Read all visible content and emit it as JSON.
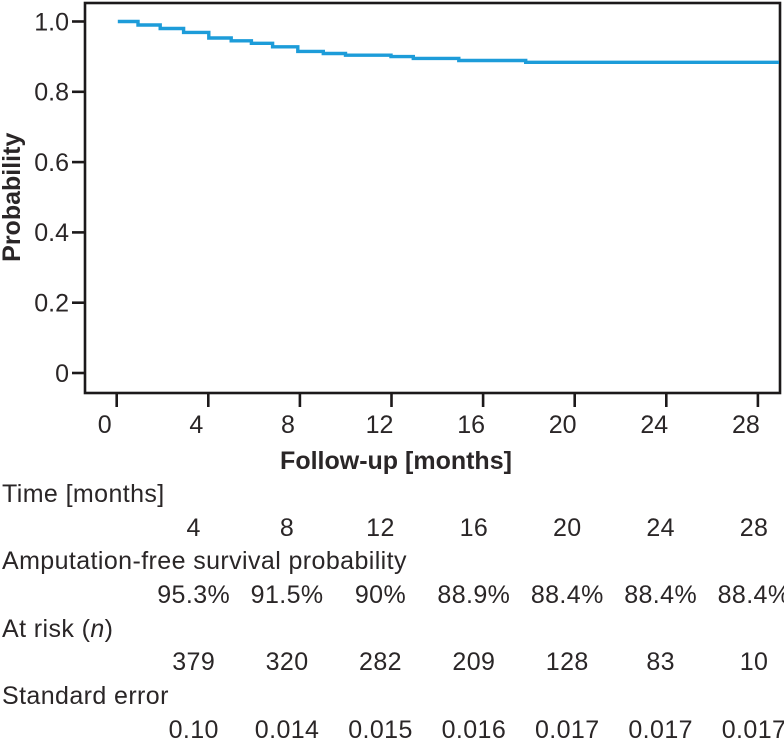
{
  "chart_data": {
    "type": "line",
    "subtype": "kaplan-meier-step-curve",
    "title": "",
    "xlabel": "Follow-up [months]",
    "ylabel": "Probability",
    "x_tick_labels": [
      "0",
      "4",
      "8",
      "12",
      "16",
      "20",
      "24",
      "28"
    ],
    "x_tick_values": [
      0,
      4,
      8,
      12,
      16,
      20,
      24,
      28
    ],
    "y_tick_labels": [
      "1.0",
      "0.8",
      "0.6",
      "0.4",
      "0.2",
      "0"
    ],
    "y_tick_values": [
      1.0,
      0.8,
      0.6,
      0.4,
      0.2,
      0
    ],
    "xlim": [
      -1.4,
      29.0
    ],
    "ylim": [
      -0.06,
      1.05
    ],
    "grid": false,
    "legend": false,
    "line_color": "#1d9cd9",
    "axis_color": "#1c191a",
    "text_color": "#2a2627",
    "series": [
      {
        "name": "Amputation-free survival probability",
        "step_points": [
          [
            0.05,
            1.0
          ],
          [
            0.93,
            0.99
          ],
          [
            1.9,
            0.98
          ],
          [
            2.92,
            0.969
          ],
          [
            4.02,
            0.953
          ],
          [
            5.0,
            0.945
          ],
          [
            5.88,
            0.938
          ],
          [
            6.81,
            0.928
          ],
          [
            7.91,
            0.915
          ],
          [
            9.02,
            0.909
          ],
          [
            9.99,
            0.904
          ],
          [
            11.98,
            0.9
          ],
          [
            12.95,
            0.895
          ],
          [
            14.94,
            0.889
          ],
          [
            17.86,
            0.884
          ],
          [
            28.92,
            0.884
          ]
        ]
      }
    ]
  },
  "table": {
    "rows": [
      {
        "label": "Time [months]",
        "values": [
          "4",
          "8",
          "12",
          "16",
          "20",
          "24",
          "28"
        ]
      },
      {
        "label": "Amputation-free survival probability",
        "values": [
          "95.3%",
          "91.5%",
          "90%",
          "88.9%",
          "88.4%",
          "88.4%",
          "88.4%"
        ]
      },
      {
        "label_prefix": "At risk (",
        "label_italic": "n",
        "label_suffix": ")",
        "values": [
          "379",
          "320",
          "282",
          "209",
          "128",
          "83",
          "10"
        ]
      },
      {
        "label": "Standard error",
        "values": [
          "0.10",
          "0.014",
          "0.015",
          "0.016",
          "0.017",
          "0.017",
          "0.017"
        ]
      }
    ]
  }
}
